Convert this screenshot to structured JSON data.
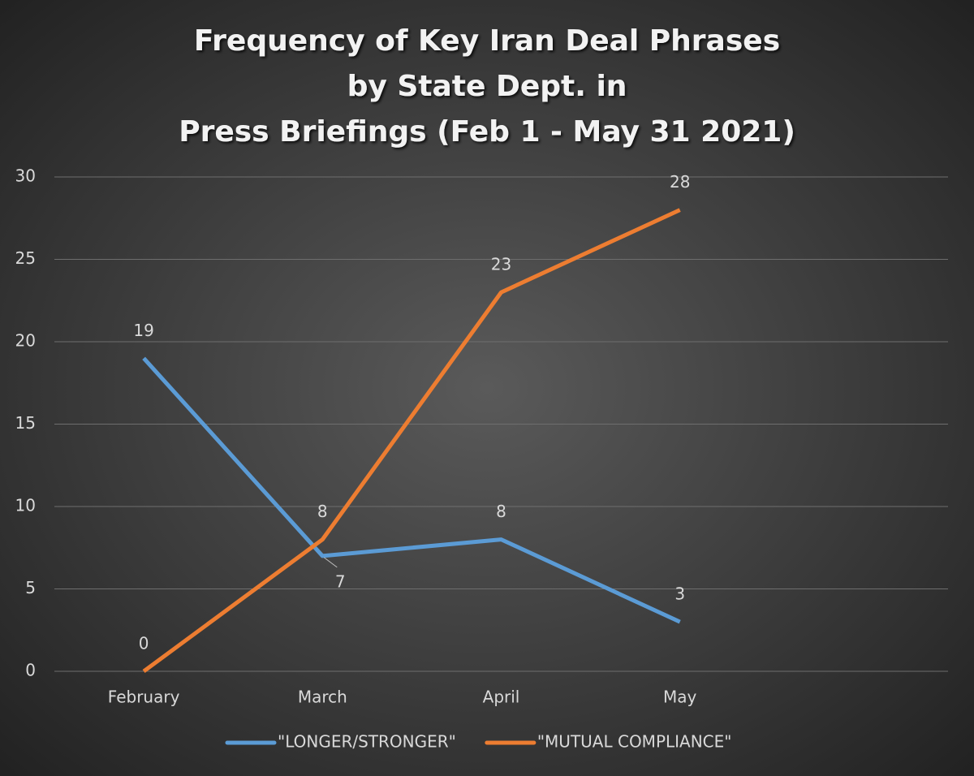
{
  "chart_data": {
    "type": "line",
    "title": [
      "Frequency of Key Iran Deal Phrases",
      "by State Dept. in",
      "Press Briefings (Feb 1 - May 31 2021)"
    ],
    "categories": [
      "February",
      "March",
      "April",
      "May",
      null
    ],
    "series": [
      {
        "name": "\"LONGER/STRONGER\"",
        "color": "#5b9bd5",
        "values": [
          19,
          7,
          8,
          3,
          null
        ]
      },
      {
        "name": "\"MUTUAL COMPLIANCE\"",
        "color": "#ed7d31",
        "values": [
          0,
          8,
          23,
          28,
          null
        ]
      }
    ],
    "ylim": [
      0,
      30
    ],
    "yticks": [
      0,
      5,
      10,
      15,
      20,
      25,
      30
    ],
    "grid": true,
    "legend": "bottom"
  }
}
